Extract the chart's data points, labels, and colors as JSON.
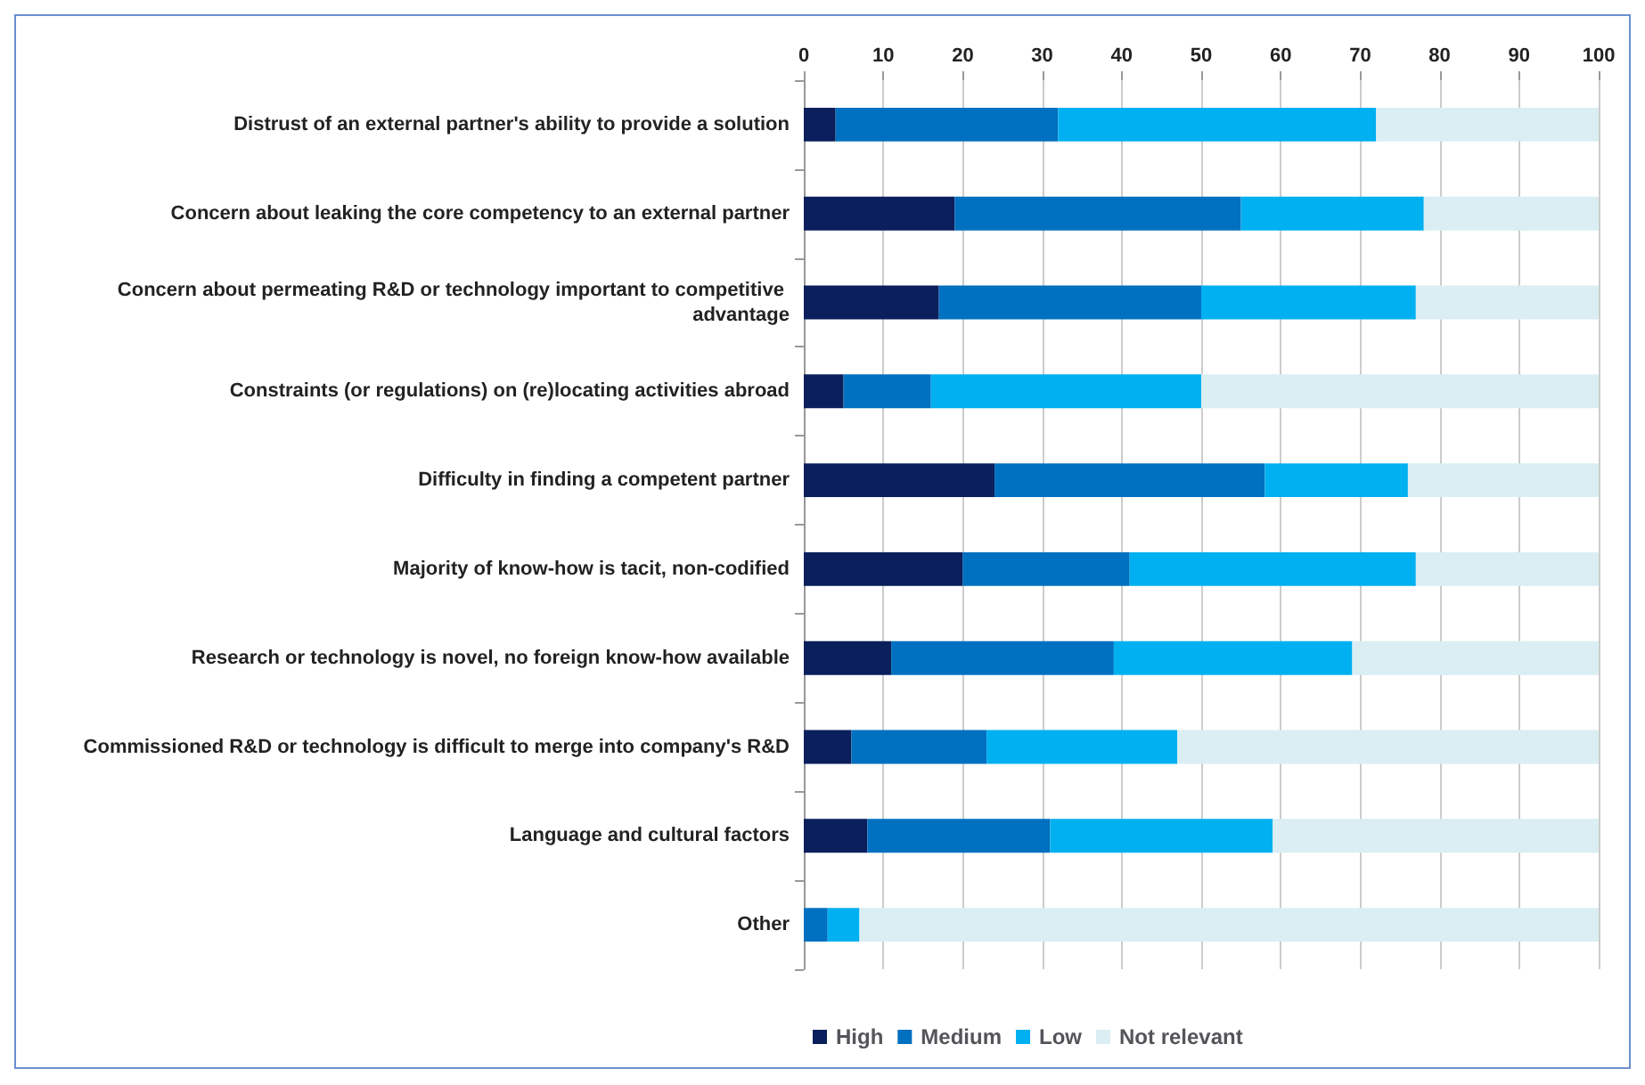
{
  "chart_data": {
    "type": "bar",
    "orientation": "horizontal",
    "stacked": true,
    "categories": [
      "Distrust of an external partner's ability to provide a solution",
      "Concern about leaking the core competency to an external partner",
      "Concern about permeating R&D or technology important to competitive advantage",
      "Constraints (or regulations) on (re)locating activities abroad",
      "Difficulty in finding a competent partner",
      "Majority of know-how is tacit, non-codified",
      "Research or technology is novel, no foreign know-how available",
      "Commissioned R&D or technology is difficult to merge into company's R&D",
      "Language and cultural factors",
      "Other"
    ],
    "series": [
      {
        "name": "High",
        "color": "#0a1f5c",
        "values": [
          4,
          19,
          17,
          5,
          24,
          20,
          11,
          6,
          8,
          0
        ]
      },
      {
        "name": "Medium",
        "color": "#0070c0",
        "values": [
          28,
          36,
          33,
          11,
          34,
          21,
          28,
          17,
          23,
          3
        ]
      },
      {
        "name": "Low",
        "color": "#00b0f0",
        "values": [
          40,
          23,
          27,
          34,
          18,
          36,
          30,
          24,
          28,
          4
        ]
      },
      {
        "name": "Not relevant",
        "color": "#daeef3",
        "values": [
          28,
          22,
          23,
          50,
          24,
          23,
          31,
          53,
          41,
          93
        ]
      }
    ],
    "xlim": [
      0,
      100
    ],
    "xticks": [
      0,
      10,
      20,
      30,
      40,
      50,
      60,
      70,
      80,
      90,
      100
    ],
    "grid": "x",
    "legend": "bottom"
  }
}
